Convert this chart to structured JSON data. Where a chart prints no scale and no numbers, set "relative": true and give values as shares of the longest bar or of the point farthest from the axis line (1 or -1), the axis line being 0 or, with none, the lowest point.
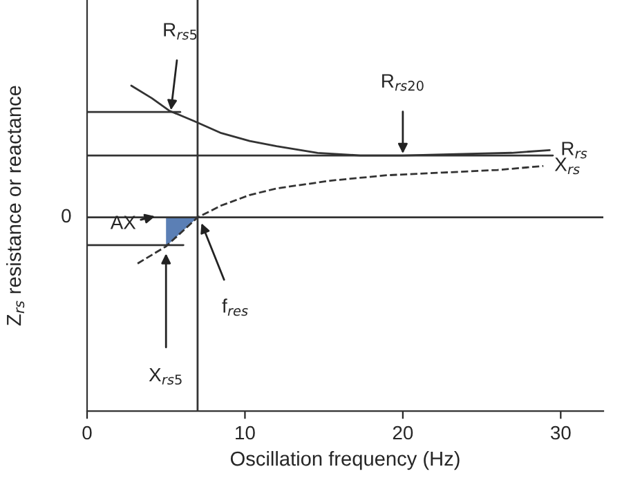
{
  "chart_data": {
    "type": "line",
    "relative": true,
    "xlabel": "Oscillation frequency (Hz)",
    "ylabel": "Z$_{rs}$ resistance or reactance",
    "xlim": [
      0,
      32.7
    ],
    "xticks": [
      0,
      10,
      20,
      30
    ],
    "tick_labels": "x",
    "series": [
      {
        "name": "R$_{rs}$",
        "color": "#333333",
        "line_style": "solid",
        "x": [
          2.8,
          4.1,
          5.2,
          6.8,
          8.5,
          10.3,
          12.0,
          14.6,
          17.3,
          20,
          23.4,
          26.9,
          29.3
        ],
        "values": [
          1.0,
          0.905,
          0.81,
          0.73,
          0.64,
          0.58,
          0.54,
          0.49,
          0.47,
          0.47,
          0.48,
          0.49,
          0.51
        ]
      },
      {
        "name": "X$_{rs}$",
        "color": "#333333",
        "line_style": "dashed",
        "x": [
          3.2,
          5,
          7,
          8.5,
          10.3,
          12,
          15.5,
          19,
          22.5,
          26,
          28.9
        ],
        "values": [
          -0.35,
          -0.22,
          0,
          0.09,
          0.17,
          0.22,
          0.28,
          0.32,
          0.34,
          0.36,
          0.39
        ]
      },
      {
        "type": "line",
        "color": "#333333",
        "line_style": "solid",
        "x": [
          0,
          5.9
        ],
        "values": [
          0.8,
          0.8
        ]
      },
      {
        "type": "line",
        "color": "#333333",
        "line_style": "solid",
        "x": [
          0,
          29.5
        ],
        "values": [
          0.47,
          0.47
        ]
      },
      {
        "type": "line",
        "color": "#333333",
        "line_style": "solid",
        "x": [
          0,
          6.1
        ],
        "values": [
          -0.21,
          -0.21
        ]
      },
      {
        "type": "area",
        "color": "#5b7fb5",
        "x": [
          5,
          7
        ],
        "values": [
          -0.22,
          0
        ]
      }
    ],
    "ref_lines": [
      {
        "axis": "y",
        "value": 0,
        "label": "0",
        "color": "#333333"
      },
      {
        "axis": "x",
        "value": 7,
        "color": "#333333"
      }
    ],
    "annotations": [
      {
        "text": "R$_{rs5}$",
        "x": 5.3,
        "y": 0.8
      },
      {
        "text": "R$_{rs20}$",
        "x": 20,
        "y": 0.47
      },
      "AX",
      {
        "text": "f$_{res}$",
        "x": 7.2,
        "y": -0.03
      },
      {
        "text": "X$_{rs5}$",
        "x": 5,
        "y": -0.26
      }
    ]
  }
}
